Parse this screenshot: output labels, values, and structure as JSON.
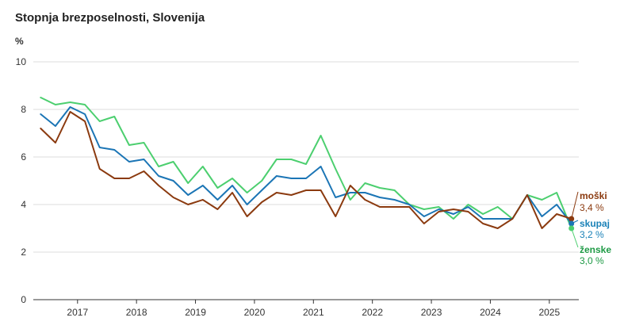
{
  "chart_data": {
    "type": "line",
    "title": "Stopnja brezposelnosti, Slovenija",
    "ylabel": "%",
    "ylim": [
      0,
      10
    ],
    "yticks": [
      0,
      2,
      4,
      6,
      8,
      10
    ],
    "xlim": [
      2016.25,
      2025.5
    ],
    "xticks": [
      2017,
      2018,
      2019,
      2020,
      2021,
      2022,
      2023,
      2024,
      2025
    ],
    "x": [
      2016.375,
      2016.625,
      2016.875,
      2017.125,
      2017.375,
      2017.625,
      2017.875,
      2018.125,
      2018.375,
      2018.625,
      2018.875,
      2019.125,
      2019.375,
      2019.625,
      2019.875,
      2020.125,
      2020.375,
      2020.625,
      2020.875,
      2021.125,
      2021.375,
      2021.625,
      2021.875,
      2022.125,
      2022.375,
      2022.625,
      2022.875,
      2023.125,
      2023.375,
      2023.625,
      2023.875,
      2024.125,
      2024.375,
      2024.625,
      2024.875,
      2025.125,
      2025.375
    ],
    "grid": true,
    "legend": "line-end labels",
    "series": [
      {
        "name": "ženske",
        "color": "#4ccf6f",
        "label_color": "#1e9a45",
        "end_label": "3,0 %",
        "values": [
          8.5,
          8.2,
          8.3,
          8.2,
          7.5,
          7.7,
          6.5,
          6.6,
          5.6,
          5.8,
          4.9,
          5.6,
          4.7,
          5.1,
          4.5,
          5.0,
          5.9,
          5.9,
          5.7,
          6.9,
          5.5,
          4.2,
          4.9,
          4.7,
          4.6,
          4.0,
          3.8,
          3.9,
          3.4,
          4.0,
          3.6,
          3.9,
          3.4,
          4.4,
          4.2,
          4.5,
          3.0
        ]
      },
      {
        "name": "skupaj",
        "color": "#1b75b5",
        "label_color": "#1b82b8",
        "end_label": "3,2 %",
        "values": [
          7.8,
          7.3,
          8.1,
          7.8,
          6.4,
          6.3,
          5.8,
          5.9,
          5.2,
          5.0,
          4.4,
          4.8,
          4.2,
          4.8,
          4.0,
          4.6,
          5.2,
          5.1,
          5.1,
          5.6,
          4.3,
          4.5,
          4.5,
          4.3,
          4.2,
          4.0,
          3.5,
          3.8,
          3.6,
          3.9,
          3.4,
          3.4,
          3.4,
          4.4,
          3.5,
          4.0,
          3.2
        ]
      },
      {
        "name": "moški",
        "color": "#8b3a0f",
        "label_color": "#8b3a0f",
        "end_label": "3,4 %",
        "values": [
          7.2,
          6.6,
          7.9,
          7.5,
          5.5,
          5.1,
          5.1,
          5.4,
          4.8,
          4.3,
          4.0,
          4.2,
          3.8,
          4.5,
          3.5,
          4.1,
          4.5,
          4.4,
          4.6,
          4.6,
          3.5,
          4.8,
          4.2,
          3.9,
          3.9,
          3.9,
          3.2,
          3.7,
          3.8,
          3.7,
          3.2,
          3.0,
          3.4,
          4.4,
          3.0,
          3.6,
          3.4
        ]
      }
    ]
  }
}
